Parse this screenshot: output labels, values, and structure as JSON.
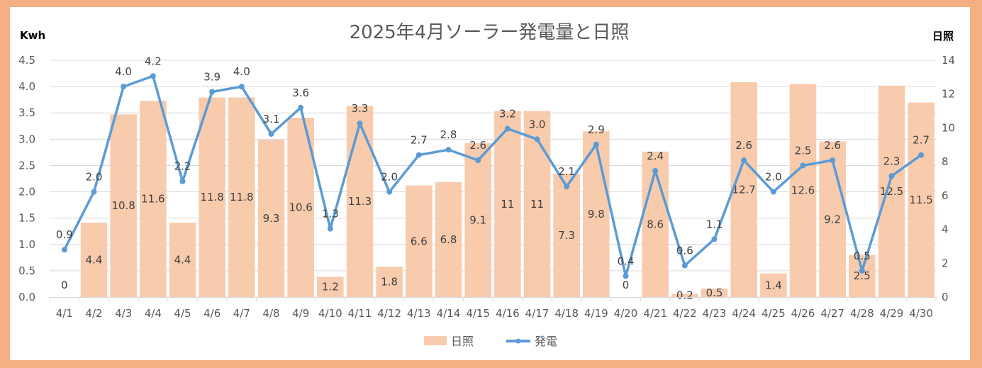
{
  "chart_data": {
    "type": "bar+line",
    "title": "2025年4月ソーラー発電量と日照",
    "categories": [
      "4/1",
      "4/2",
      "4/3",
      "4/4",
      "4/5",
      "4/6",
      "4/7",
      "4/8",
      "4/9",
      "4/10",
      "4/11",
      "4/12",
      "4/13",
      "4/14",
      "4/15",
      "4/16",
      "4/17",
      "4/18",
      "4/19",
      "4/20",
      "4/21",
      "4/22",
      "4/23",
      "4/24",
      "4/25",
      "4/26",
      "4/27",
      "4/28",
      "4/29",
      "4/30"
    ],
    "series": [
      {
        "name": "日照",
        "type": "bar",
        "axis": "right",
        "color": "#F8CBAD",
        "values": [
          0,
          4.4,
          10.8,
          11.6,
          4.4,
          11.8,
          11.8,
          9.3,
          10.6,
          1.2,
          11.3,
          1.8,
          6.6,
          6.8,
          9.1,
          11,
          11,
          7.3,
          9.8,
          0,
          8.6,
          0.2,
          0.5,
          12.7,
          1.4,
          12.6,
          9.2,
          2.5,
          12.5,
          11.5
        ],
        "labels": [
          "0",
          "4.4",
          "10.8",
          "11.6",
          "4.4",
          "11.8",
          "11.8",
          "9.3",
          "10.6",
          "1.2",
          "11.3",
          "1.8",
          "6.6",
          "6.8",
          "9.1",
          "11",
          "11",
          "7.3",
          "9.8",
          "0",
          "8.6",
          "0.2",
          "0.5",
          "12.7",
          "1.4",
          "12.6",
          "9.2",
          "2.5",
          "12.5",
          "11.5"
        ]
      },
      {
        "name": "発電",
        "type": "line",
        "axis": "left",
        "color": "#5B9BD5",
        "values": [
          0.9,
          2.0,
          4.0,
          4.2,
          2.2,
          3.9,
          4.0,
          3.1,
          3.6,
          1.3,
          3.3,
          2.0,
          2.7,
          2.8,
          2.6,
          3.2,
          3.0,
          2.1,
          2.9,
          0.4,
          2.4,
          0.6,
          1.1,
          2.6,
          2.0,
          2.5,
          2.6,
          0.5,
          2.3,
          2.7
        ],
        "labels": [
          "0.9",
          "2.0",
          "4.0",
          "4.2",
          "2.2",
          "3.9",
          "4.0",
          "3.1",
          "3.6",
          "1.3",
          "3.3",
          "2.0",
          "2.7",
          "2.8",
          "2.6",
          "3.2",
          "3.0",
          "2.1",
          "2.9",
          "0.4",
          "2.4",
          "0.6",
          "1.1",
          "2.6",
          "2.0",
          "2.5",
          "2.6",
          "0.5",
          "2.3",
          "2.7"
        ]
      }
    ],
    "y_left": {
      "label": "Kwh",
      "range": [
        0,
        4.5
      ],
      "ticks": [
        "0.0",
        "0.5",
        "1.0",
        "1.5",
        "2.0",
        "2.5",
        "3.0",
        "3.5",
        "4.0",
        "4.5"
      ]
    },
    "y_right": {
      "label": "日照",
      "range": [
        0,
        14
      ],
      "ticks": [
        "0",
        "2",
        "4",
        "6",
        "8",
        "10",
        "12",
        "14"
      ]
    },
    "grid": true,
    "legend": {
      "position": "bottom",
      "entries": [
        "日照",
        "発電"
      ]
    }
  },
  "colors": {
    "frame": "#F4B084",
    "bar": "#F8CBAD",
    "line": "#5B9BD5",
    "grid": "#D9D9D9"
  }
}
